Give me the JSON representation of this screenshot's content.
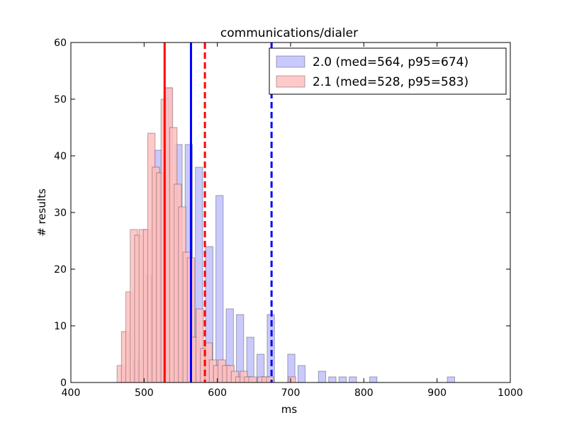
{
  "chart_data": {
    "type": "bar",
    "title": "communications/dialer",
    "xlabel": "ms",
    "ylabel": "# results",
    "xlim": [
      400,
      1000
    ],
    "ylim": [
      0,
      60
    ],
    "xticks": [
      400,
      500,
      600,
      700,
      800,
      900,
      1000
    ],
    "yticks": [
      0,
      10,
      20,
      30,
      40,
      50,
      60
    ],
    "grid": false,
    "legend_position": "top-right",
    "bin_width": 10,
    "series": [
      {
        "name": "2.0 (med=564, p95=674)",
        "color": "#0000ff",
        "fill": "#bfbffd",
        "median": 564,
        "p95": 674,
        "bins": [
          {
            "x0": 484,
            "value": 4
          },
          {
            "x0": 500,
            "value": 19
          },
          {
            "x0": 514,
            "value": 41
          },
          {
            "x0": 528,
            "value": 52
          },
          {
            "x0": 542,
            "value": 42
          },
          {
            "x0": 556,
            "value": 42
          },
          {
            "x0": 570,
            "value": 38
          },
          {
            "x0": 584,
            "value": 24
          },
          {
            "x0": 598,
            "value": 33
          },
          {
            "x0": 612,
            "value": 13
          },
          {
            "x0": 626,
            "value": 12
          },
          {
            "x0": 640,
            "value": 8
          },
          {
            "x0": 654,
            "value": 5
          },
          {
            "x0": 668,
            "value": 12
          },
          {
            "x0": 682,
            "value": 0
          },
          {
            "x0": 696,
            "value": 5
          },
          {
            "x0": 710,
            "value": 3
          },
          {
            "x0": 738,
            "value": 2
          },
          {
            "x0": 752,
            "value": 1
          },
          {
            "x0": 766,
            "value": 1
          },
          {
            "x0": 780,
            "value": 1
          },
          {
            "x0": 808,
            "value": 1
          },
          {
            "x0": 914,
            "value": 1
          }
        ]
      },
      {
        "name": "2.1 (med=528, p95=583)",
        "color": "#ff0000",
        "fill": "#ffbfbf",
        "median": 528,
        "p95": 583,
        "bins": [
          {
            "x0": 463,
            "value": 3
          },
          {
            "x0": 469,
            "value": 9
          },
          {
            "x0": 475,
            "value": 16
          },
          {
            "x0": 481,
            "value": 27
          },
          {
            "x0": 487,
            "value": 26
          },
          {
            "x0": 493,
            "value": 27
          },
          {
            "x0": 499,
            "value": 27
          },
          {
            "x0": 505,
            "value": 44
          },
          {
            "x0": 511,
            "value": 38
          },
          {
            "x0": 517,
            "value": 37
          },
          {
            "x0": 523,
            "value": 50
          },
          {
            "x0": 529,
            "value": 52
          },
          {
            "x0": 535,
            "value": 45
          },
          {
            "x0": 541,
            "value": 35
          },
          {
            "x0": 547,
            "value": 31
          },
          {
            "x0": 553,
            "value": 23
          },
          {
            "x0": 559,
            "value": 22
          },
          {
            "x0": 565,
            "value": 8
          },
          {
            "x0": 571,
            "value": 13
          },
          {
            "x0": 577,
            "value": 6
          },
          {
            "x0": 583,
            "value": 7
          },
          {
            "x0": 589,
            "value": 4
          },
          {
            "x0": 595,
            "value": 3
          },
          {
            "x0": 601,
            "value": 4
          },
          {
            "x0": 607,
            "value": 3
          },
          {
            "x0": 613,
            "value": 3
          },
          {
            "x0": 619,
            "value": 2
          },
          {
            "x0": 625,
            "value": 1
          },
          {
            "x0": 631,
            "value": 2
          },
          {
            "x0": 637,
            "value": 1
          },
          {
            "x0": 643,
            "value": 1
          },
          {
            "x0": 655,
            "value": 1
          },
          {
            "x0": 661,
            "value": 1
          },
          {
            "x0": 667,
            "value": 1
          },
          {
            "x0": 697,
            "value": 1
          }
        ]
      }
    ]
  }
}
